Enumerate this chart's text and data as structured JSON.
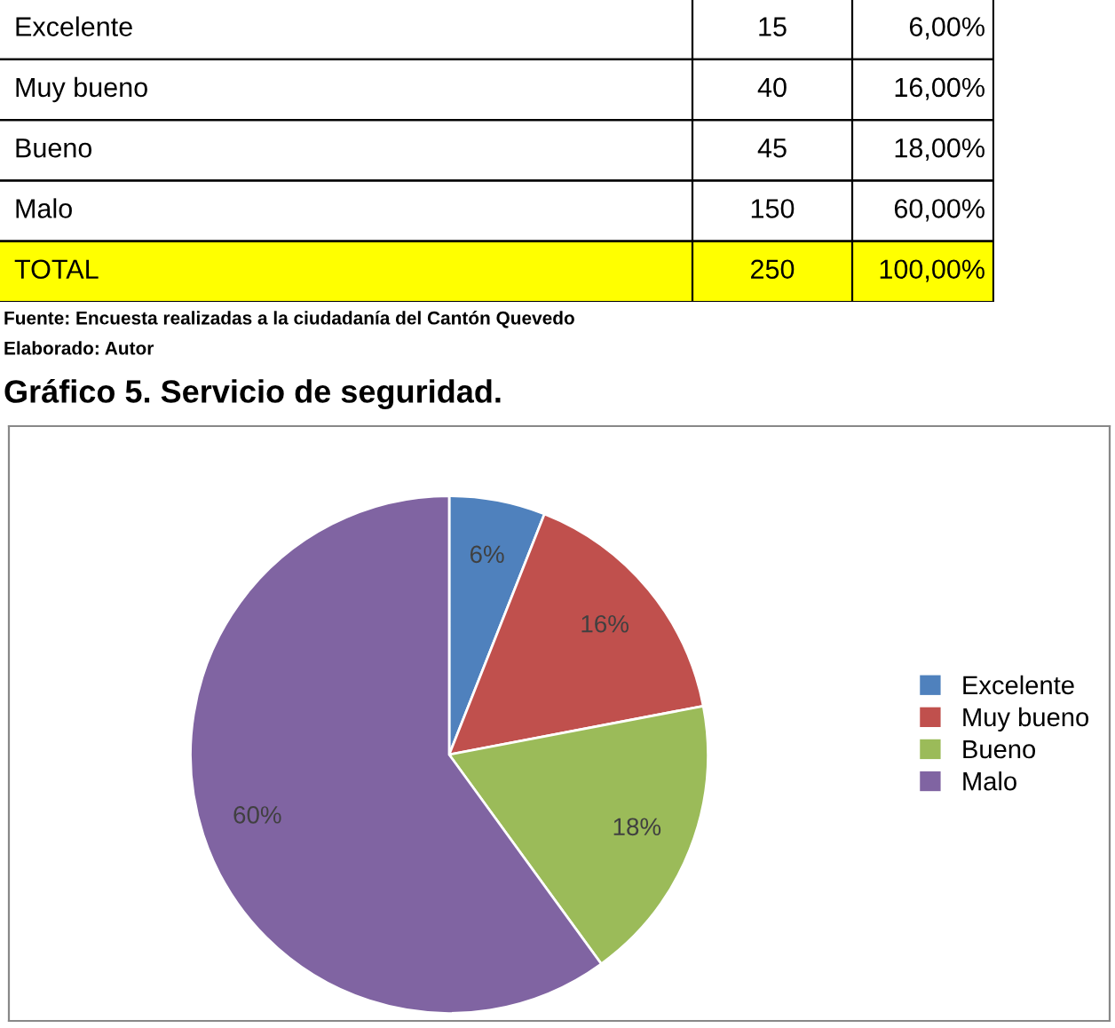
{
  "chart_data": [
    {
      "type": "other",
      "data_labels": true,
      "categories": [
        "Excelente",
        "Muy bueno",
        "Bueno",
        "Malo",
        "TOTAL"
      ],
      "series": [
        {
          "values": [
            15,
            40,
            45,
            150,
            250
          ]
        },
        {
          "values": [
            6,
            16,
            18,
            60,
            100
          ],
          "value_labels": [
            "6,00%",
            "16,00%",
            "18,00%",
            "60,00%",
            "100,00%"
          ]
        }
      ],
      "annotations": [
        "Fuente: Encuesta realizadas a la ciudadanía del Cantón Quevedo",
        "Elaborado: Autor"
      ]
    },
    {
      "type": "pie",
      "title": "Gráfico 5. Servicio de seguridad.",
      "categories": [
        "Excelente",
        "Muy bueno",
        "Bueno",
        "Malo"
      ],
      "values": [
        6,
        16,
        18,
        60
      ],
      "value_labels": [
        "6%",
        "16%",
        "18%",
        "60%"
      ],
      "colors": [
        "#4f81bd",
        "#c0504d",
        "#9bbb59",
        "#8064a2"
      ],
      "legend": "right"
    }
  ]
}
